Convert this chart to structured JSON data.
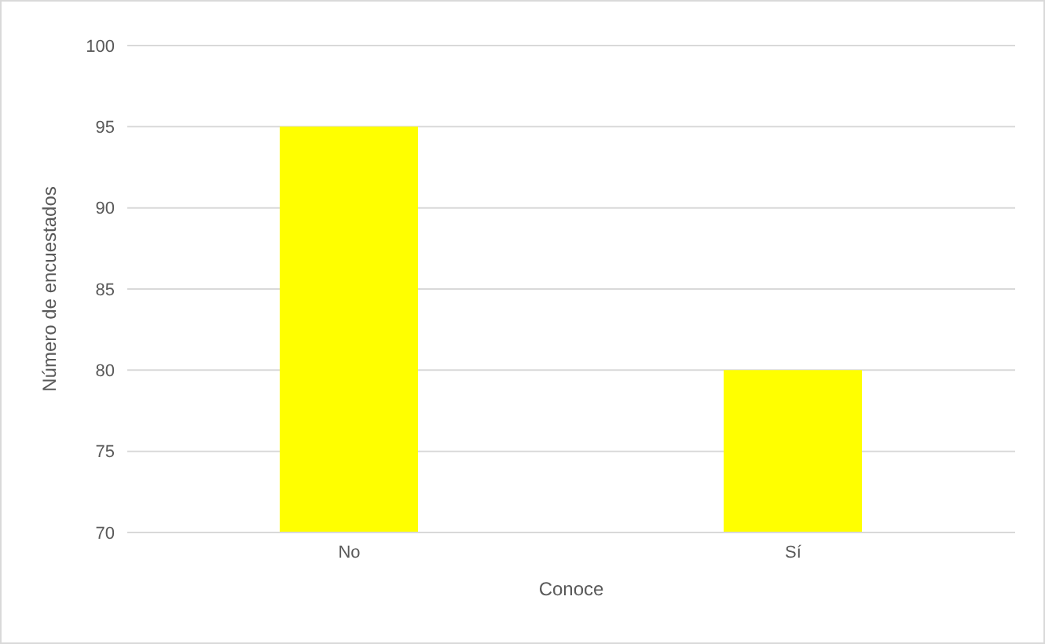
{
  "chart_data": {
    "type": "bar",
    "xlabel": "Conoce",
    "ylabel": "Número de encuestados",
    "categories": [
      "No",
      "Sí"
    ],
    "values": [
      95,
      80
    ],
    "color": "#ffff00",
    "ylim": [
      70,
      100
    ],
    "yticks": [
      70,
      75,
      80,
      85,
      90,
      95,
      100
    ],
    "grid": "y"
  }
}
